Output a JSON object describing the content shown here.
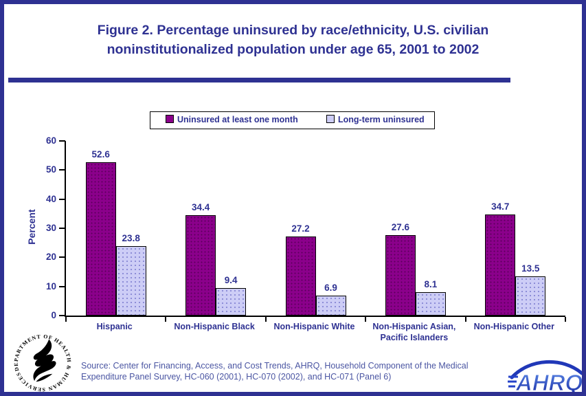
{
  "title": {
    "line1": "Figure 2. Percentage uninsured by race/ethnicity, U.S. civilian",
    "line2": "noninstitutionalized population under age 65, 2001 to 2002"
  },
  "chart_data": {
    "type": "bar",
    "title": "Figure 2. Percentage uninsured by race/ethnicity, U.S. civilian noninstitutionalized population under age 65, 2001 to 2002",
    "categories": [
      "Hispanic",
      "Non-Hispanic Black",
      "Non-Hispanic White",
      "Non-Hispanic Asian,\nPacific Islanders",
      "Non-Hispanic Other"
    ],
    "series": [
      {
        "name": "Uninsured at least one month",
        "color": "#8B008B",
        "values": [
          52.6,
          34.4,
          27.2,
          27.6,
          34.7
        ]
      },
      {
        "name": "Long-term uninsured",
        "color": "#CDCDF6",
        "values": [
          23.8,
          9.4,
          6.9,
          8.1,
          13.5
        ]
      }
    ],
    "xlabel": "",
    "ylabel": "Percent",
    "ylim": [
      0,
      60
    ],
    "yticks": [
      0,
      10,
      20,
      30,
      40,
      50,
      60
    ],
    "grid": false,
    "legend_position": "top-center"
  },
  "footer": {
    "source_line1": "Source: Center for Financing, Access, and Cost Trends, AHRQ, Household Component of the Medical",
    "source_line2": "Expenditure Panel Survey, HC-060 (2001), HC-070 (2002), and HC-071 (Panel 6)"
  },
  "logos": {
    "hhs_seal_text": "DEPARTMENT OF HEALTH & HUMAN SERVICES · USA ·",
    "ahrq_text": "AHRQ"
  },
  "colors": {
    "accent": "#2E3192",
    "bar_primary": "#8B008B",
    "bar_secondary": "#CDCDF6",
    "source_text": "#4A55A2"
  }
}
